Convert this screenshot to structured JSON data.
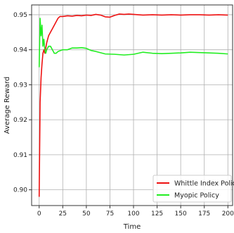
{
  "chart_data": {
    "type": "line",
    "title": "",
    "xlabel": "Time",
    "ylabel": "Average Reward",
    "xlim": [
      -8,
      205
    ],
    "ylim": [
      0.8955,
      0.9528
    ],
    "xticks": [
      0,
      25,
      50,
      75,
      100,
      125,
      150,
      175,
      200
    ],
    "yticks": [
      0.9,
      0.91,
      0.92,
      0.93,
      0.94,
      0.95
    ],
    "xtick_labels": [
      "0",
      "25",
      "50",
      "75",
      "100",
      "125",
      "150",
      "175",
      "200"
    ],
    "ytick_labels": [
      "0.90",
      "0.91",
      "0.92",
      "0.93",
      "0.94",
      "0.95"
    ],
    "grid": true,
    "legend_position": "bottom-right",
    "series": [
      {
        "name": "Whittle Index Policy",
        "color": "#ee1111",
        "x": [
          0,
          1,
          2,
          3,
          4,
          5,
          6,
          8,
          10,
          12,
          14,
          16,
          18,
          20,
          22,
          25,
          30,
          35,
          40,
          45,
          50,
          55,
          60,
          65,
          70,
          75,
          80,
          85,
          90,
          95,
          100,
          110,
          120,
          130,
          140,
          150,
          160,
          170,
          180,
          190,
          200
        ],
        "y": [
          0.898,
          0.925,
          0.932,
          0.936,
          0.939,
          0.94,
          0.939,
          0.942,
          0.944,
          0.945,
          0.946,
          0.947,
          0.948,
          0.949,
          0.9495,
          0.9495,
          0.9497,
          0.9496,
          0.9498,
          0.9497,
          0.9499,
          0.9498,
          0.9501,
          0.9499,
          0.9494,
          0.9493,
          0.9498,
          0.9502,
          0.9501,
          0.9502,
          0.9501,
          0.9499,
          0.95,
          0.9499,
          0.95,
          0.9499,
          0.95,
          0.95,
          0.9499,
          0.95,
          0.9499
        ]
      },
      {
        "name": "Myopic Policy",
        "color": "#22ee22",
        "x": [
          0,
          1,
          2,
          3,
          4,
          5,
          6,
          7,
          8,
          10,
          12,
          14,
          16,
          18,
          20,
          25,
          30,
          35,
          40,
          45,
          50,
          55,
          60,
          70,
          80,
          90,
          100,
          110,
          120,
          130,
          140,
          150,
          160,
          170,
          180,
          190,
          200
        ],
        "y": [
          0.935,
          0.949,
          0.944,
          0.947,
          0.941,
          0.943,
          0.94,
          0.939,
          0.94,
          0.941,
          0.941,
          0.94,
          0.939,
          0.939,
          0.9395,
          0.94,
          0.94,
          0.9405,
          0.9405,
          0.9406,
          0.9404,
          0.9398,
          0.9395,
          0.9388,
          0.9387,
          0.9385,
          0.9387,
          0.9393,
          0.939,
          0.9389,
          0.939,
          0.9391,
          0.9393,
          0.9392,
          0.9391,
          0.939,
          0.9388
        ]
      }
    ]
  }
}
